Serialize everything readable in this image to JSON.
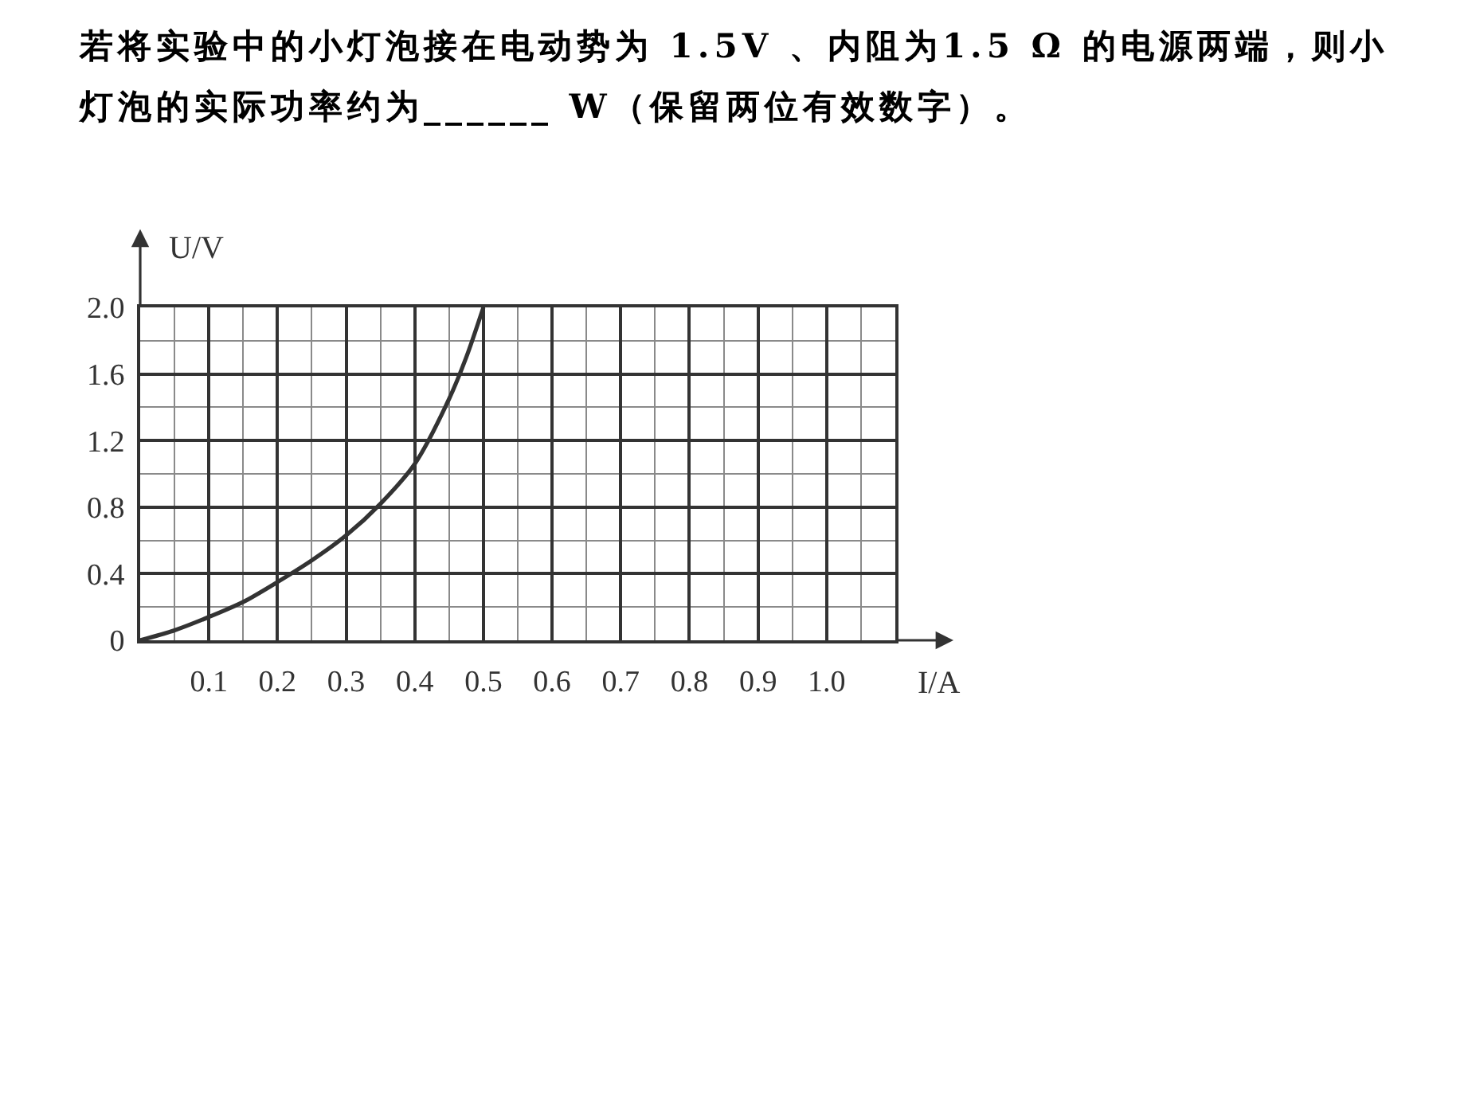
{
  "chart_data": {
    "type": "line",
    "title": "若将实验中的小灯泡接在电动势为 1.5V 、内阻为1.5 Ω 的电源两端，则小灯泡的实际功率约为______ W（保留两位有效数字）。",
    "xlabel": "I/A",
    "ylabel": "U/V",
    "x": [
      0,
      0.05,
      0.1,
      0.15,
      0.2,
      0.25,
      0.3,
      0.35,
      0.4,
      0.45,
      0.475,
      0.5
    ],
    "values": [
      0,
      0.06,
      0.14,
      0.23,
      0.35,
      0.48,
      0.63,
      0.82,
      1.06,
      1.45,
      1.7,
      2.0
    ],
    "color": "#333333",
    "xlim": [
      0,
      1.1
    ],
    "ylim": [
      0,
      2.0
    ],
    "xticks": [
      {
        "value": 0.05,
        "label": null
      },
      0.1,
      {
        "value": 0.15,
        "label": null
      },
      0.2,
      {
        "value": 0.25,
        "label": null
      },
      0.3,
      {
        "value": 0.35,
        "label": null
      },
      0.4,
      {
        "value": 0.45,
        "label": null
      },
      0.5,
      {
        "value": 0.55,
        "label": null
      },
      0.6,
      {
        "value": 0.65,
        "label": null
      },
      0.7,
      {
        "value": 0.75,
        "label": null
      },
      0.8,
      {
        "value": 0.85,
        "label": null
      },
      0.9,
      {
        "value": 0.95,
        "label": null
      },
      {
        "value": 1,
        "label": "1.0"
      },
      {
        "value": 1.05,
        "label": null
      }
    ],
    "yticks": [
      0,
      {
        "value": 0.2,
        "label": null
      },
      0.4,
      {
        "value": 0.6,
        "label": null
      },
      0.8,
      {
        "value": 1.0,
        "label": null
      },
      1.2,
      {
        "value": 1.4,
        "label": null
      },
      1.6,
      {
        "value": 1.8,
        "label": null
      },
      {
        "value": 2,
        "label": "2.0"
      }
    ],
    "grid": true
  }
}
